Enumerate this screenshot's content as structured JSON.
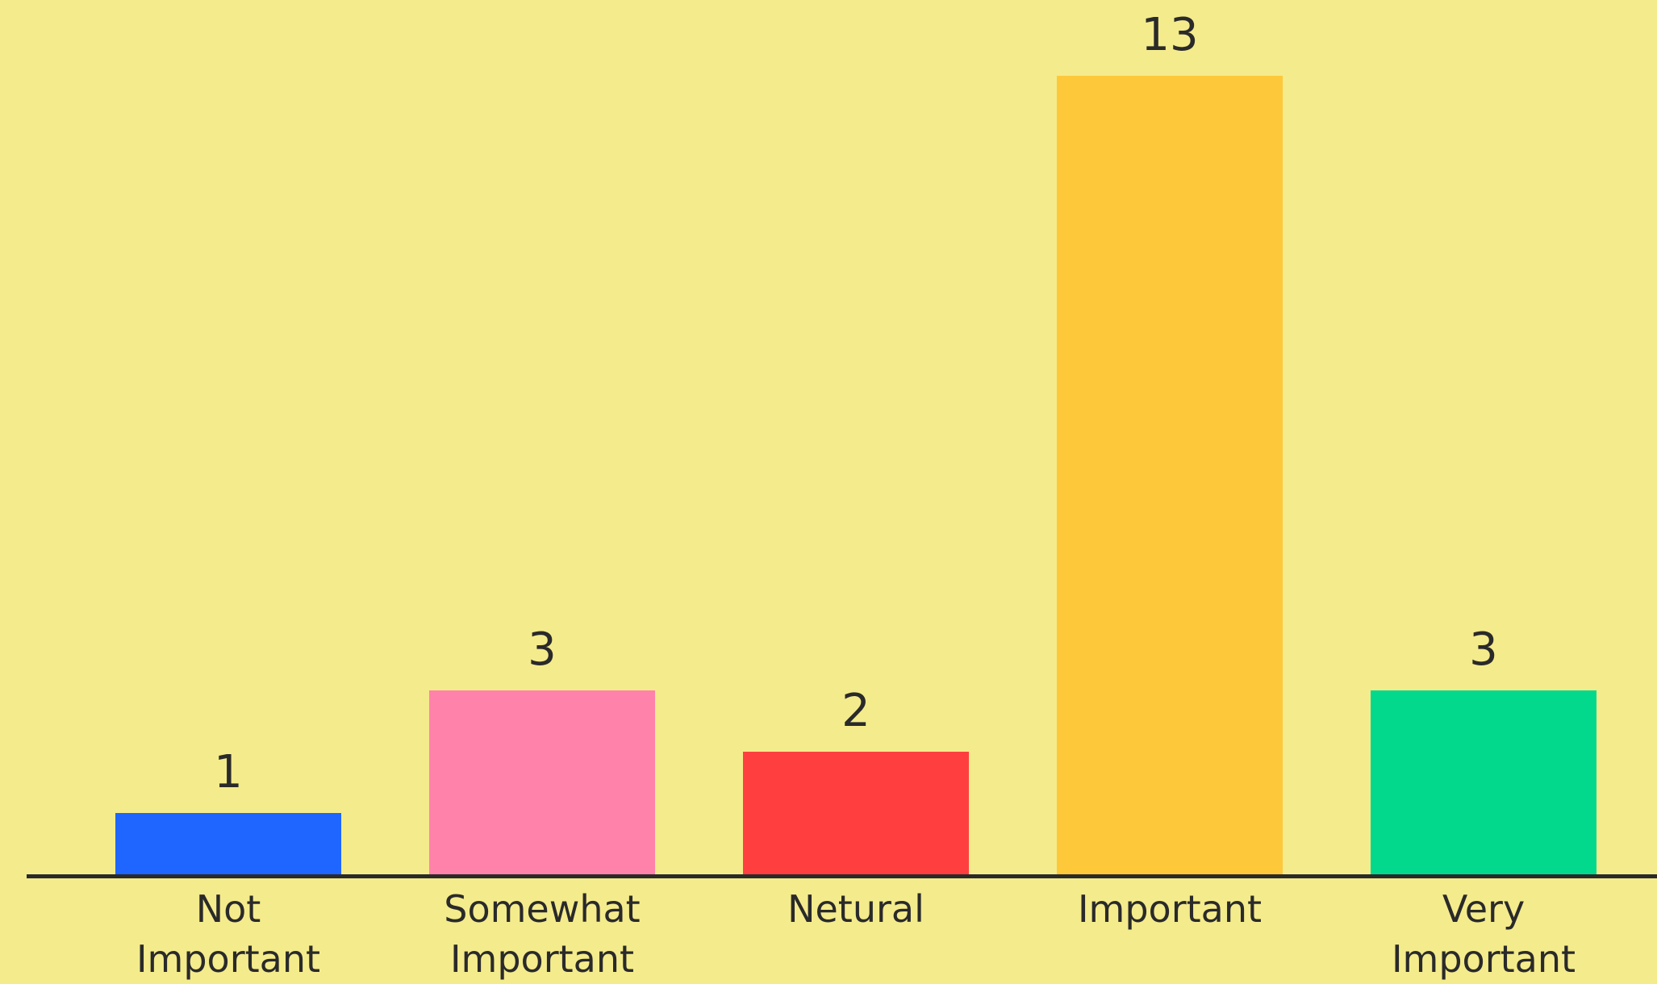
{
  "chart_data": {
    "type": "bar",
    "categories": [
      "Not Important",
      "Somewhat Important",
      "Netural",
      "Important",
      "Very Important"
    ],
    "values": [
      1,
      3,
      2,
      13,
      3
    ],
    "colors": [
      "#1e66ff",
      "#ff82aa",
      "#ff3f3f",
      "#fdc83a",
      "#02d98d"
    ]
  }
}
